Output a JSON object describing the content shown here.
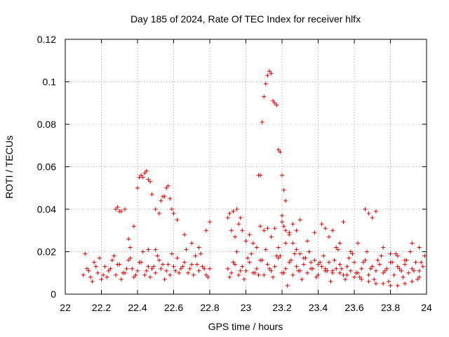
{
  "chart_data": {
    "type": "scatter",
    "title": "Day 185 of 2024, Rate Of TEC Index for receiver hlfx",
    "xlabel": "GPS time / hours",
    "ylabel": "ROTI / TECUs",
    "xlim": [
      22,
      24
    ],
    "ylim": [
      0,
      0.12
    ],
    "xticks": [
      "22",
      "22.2",
      "22.4",
      "22.6",
      "22.8",
      "23",
      "23.2",
      "23.4",
      "23.6",
      "23.8",
      "24"
    ],
    "yticks": [
      "0",
      "0.02",
      "0.04",
      "0.06",
      "0.08",
      "0.1",
      "0.12"
    ],
    "grid": true,
    "marker": "+",
    "color": "#e00000",
    "series": [
      {
        "name": "ROTI",
        "x": [
          22.1,
          22.12,
          22.14,
          22.16,
          22.18,
          22.2,
          22.22,
          22.24,
          22.26,
          22.28,
          22.3,
          22.32,
          22.34,
          22.36,
          22.38,
          22.4,
          22.42,
          22.44,
          22.46,
          22.48,
          22.5,
          22.52,
          22.54,
          22.56,
          22.58,
          22.6,
          22.62,
          22.64,
          22.66,
          22.68,
          22.7,
          22.72,
          22.74,
          22.76,
          22.78,
          22.8,
          22.11,
          22.15,
          22.19,
          22.23,
          22.27,
          22.31,
          22.35,
          22.39,
          22.43,
          22.47,
          22.51,
          22.55,
          22.59,
          22.63,
          22.67,
          22.71,
          22.75,
          22.79,
          22.13,
          22.17,
          22.21,
          22.25,
          22.29,
          22.33,
          22.37,
          22.41,
          22.45,
          22.49,
          22.53,
          22.57,
          22.61,
          22.65,
          22.69,
          22.73,
          22.77,
          22.28,
          22.29,
          22.3,
          22.31,
          22.33,
          22.35,
          22.4,
          22.41,
          22.42,
          22.43,
          22.44,
          22.45,
          22.46,
          22.47,
          22.48,
          22.5,
          22.52,
          22.53,
          22.54,
          22.55,
          22.56,
          22.57,
          22.58,
          22.59,
          22.6,
          22.62,
          22.66,
          22.7,
          22.74,
          22.78,
          22.8,
          22.38,
          22.36,
          22.46,
          22.5,
          22.9,
          22.92,
          22.94,
          22.96,
          22.98,
          23.0,
          23.02,
          23.04,
          23.06,
          23.08,
          23.1,
          23.12,
          23.14,
          23.16,
          23.18,
          23.2,
          23.22,
          23.24,
          23.26,
          23.28,
          23.3,
          23.32,
          23.34,
          23.36,
          23.38,
          23.4,
          23.42,
          23.44,
          23.46,
          23.48,
          23.5,
          23.52,
          23.54,
          23.56,
          23.58,
          23.6,
          23.62,
          23.64,
          23.66,
          23.68,
          23.7,
          23.72,
          23.74,
          23.76,
          23.78,
          23.8,
          23.82,
          23.84,
          23.86,
          23.88,
          23.9,
          23.92,
          23.94,
          23.96,
          23.98,
          22.91,
          22.95,
          22.99,
          23.03,
          23.07,
          23.11,
          23.15,
          23.19,
          23.23,
          23.27,
          23.31,
          23.35,
          23.39,
          23.43,
          23.47,
          23.51,
          23.55,
          23.59,
          23.63,
          23.67,
          23.71,
          23.75,
          23.79,
          23.83,
          23.87,
          23.91,
          23.95,
          23.99,
          22.93,
          22.97,
          23.01,
          23.05,
          23.09,
          23.13,
          23.17,
          23.21,
          23.25,
          23.29,
          23.33,
          23.37,
          23.41,
          23.45,
          23.49,
          23.53,
          23.57,
          23.61,
          23.65,
          23.69,
          23.73,
          23.77,
          23.81,
          23.85,
          23.89,
          23.93,
          23.97,
          22.9,
          22.91,
          22.92,
          22.93,
          22.94,
          22.95,
          22.96,
          22.97,
          22.98,
          23.0,
          23.02,
          23.04,
          23.06,
          23.08,
          23.1,
          23.12,
          23.14,
          23.16,
          23.18,
          23.2,
          23.22,
          23.24,
          23.26,
          23.28,
          23.3,
          23.34,
          23.38,
          23.42,
          23.44,
          23.46,
          23.48,
          23.5,
          23.52,
          23.54,
          23.58,
          23.62,
          23.66,
          23.68,
          23.7,
          23.72,
          23.76,
          23.8,
          23.84,
          23.88,
          23.92,
          23.96,
          23.07,
          23.08,
          23.09,
          23.1,
          23.11,
          23.12,
          23.13,
          23.14,
          23.15,
          23.16,
          23.17,
          23.18,
          23.19,
          23.2,
          23.21,
          23.22,
          23.2,
          23.21,
          23.22,
          23.24,
          23.26,
          23.28,
          23.3,
          23.32,
          23.36,
          23.4,
          23.44,
          23.48,
          23.52,
          23.56,
          23.6,
          23.64,
          23.68,
          23.72,
          23.76,
          23.8,
          23.84,
          23.88,
          23.92,
          23.96
        ],
        "y": [
          0.009,
          0.012,
          0.008,
          0.015,
          0.01,
          0.007,
          0.013,
          0.011,
          0.016,
          0.009,
          0.014,
          0.01,
          0.012,
          0.017,
          0.008,
          0.011,
          0.015,
          0.009,
          0.013,
          0.012,
          0.01,
          0.016,
          0.014,
          0.011,
          0.009,
          0.013,
          0.017,
          0.012,
          0.015,
          0.01,
          0.014,
          0.018,
          0.011,
          0.013,
          0.009,
          0.012,
          0.019,
          0.006,
          0.017,
          0.008,
          0.018,
          0.007,
          0.016,
          0.009,
          0.02,
          0.008,
          0.018,
          0.007,
          0.019,
          0.01,
          0.021,
          0.009,
          0.019,
          0.008,
          0.011,
          0.013,
          0.009,
          0.012,
          0.014,
          0.01,
          0.012,
          0.015,
          0.011,
          0.013,
          0.012,
          0.014,
          0.011,
          0.013,
          0.012,
          0.014,
          0.012,
          0.04,
          0.041,
          0.039,
          0.039,
          0.04,
          0.026,
          0.05,
          0.055,
          0.056,
          0.055,
          0.057,
          0.058,
          0.054,
          0.053,
          0.047,
          0.04,
          0.038,
          0.044,
          0.046,
          0.046,
          0.05,
          0.051,
          0.045,
          0.04,
          0.038,
          0.035,
          0.028,
          0.024,
          0.022,
          0.03,
          0.034,
          0.032,
          0.022,
          0.021,
          0.021,
          0.012,
          0.01,
          0.014,
          0.009,
          0.013,
          0.011,
          0.015,
          0.01,
          0.012,
          0.016,
          0.009,
          0.014,
          0.011,
          0.013,
          0.017,
          0.01,
          0.012,
          0.015,
          0.009,
          0.013,
          0.011,
          0.014,
          0.01,
          0.012,
          0.016,
          0.009,
          0.013,
          0.011,
          0.015,
          0.01,
          0.012,
          0.014,
          0.009,
          0.013,
          0.011,
          0.015,
          0.01,
          0.012,
          0.016,
          0.009,
          0.013,
          0.011,
          0.014,
          0.01,
          0.012,
          0.015,
          0.009,
          0.013,
          0.011,
          0.014,
          0.01,
          0.012,
          0.015,
          0.011,
          0.013,
          0.008,
          0.02,
          0.007,
          0.019,
          0.009,
          0.021,
          0.008,
          0.018,
          0.004,
          0.019,
          0.007,
          0.02,
          0.008,
          0.018,
          0.006,
          0.021,
          0.007,
          0.019,
          0.008,
          0.02,
          0.007,
          0.018,
          0.006,
          0.019,
          0.008,
          0.02,
          0.007,
          0.018,
          0.015,
          0.011,
          0.017,
          0.01,
          0.016,
          0.012,
          0.018,
          0.01,
          0.016,
          0.011,
          0.017,
          0.012,
          0.015,
          0.011,
          0.016,
          0.012,
          0.017,
          0.01,
          0.015,
          0.012,
          0.016,
          0.011,
          0.015,
          0.012,
          0.016,
          0.011,
          0.015,
          0.036,
          0.038,
          0.03,
          0.039,
          0.027,
          0.04,
          0.033,
          0.036,
          0.03,
          0.025,
          0.028,
          0.024,
          0.022,
          0.032,
          0.03,
          0.031,
          0.027,
          0.031,
          0.022,
          0.034,
          0.024,
          0.029,
          0.033,
          0.03,
          0.035,
          0.025,
          0.029,
          0.033,
          0.031,
          0.027,
          0.03,
          0.022,
          0.024,
          0.034,
          0.02,
          0.024,
          0.04,
          0.038,
          0.036,
          0.039,
          0.022,
          0.019,
          0.018,
          0.016,
          0.024,
          0.022,
          0.056,
          0.056,
          0.081,
          0.093,
          0.099,
          0.103,
          0.105,
          0.104,
          0.091,
          0.09,
          0.089,
          0.068,
          0.067,
          0.056,
          0.049,
          0.044,
          0.037,
          0.032,
          0.03,
          0.028,
          0.024,
          0.021,
          0.019,
          0.017,
          0.015,
          0.014,
          0.012,
          0.011,
          0.01,
          0.009,
          0.008,
          0.007,
          0.006,
          0.005,
          0.005,
          0.004,
          0.004,
          0.005,
          0.006,
          0.008
        ]
      }
    ]
  }
}
